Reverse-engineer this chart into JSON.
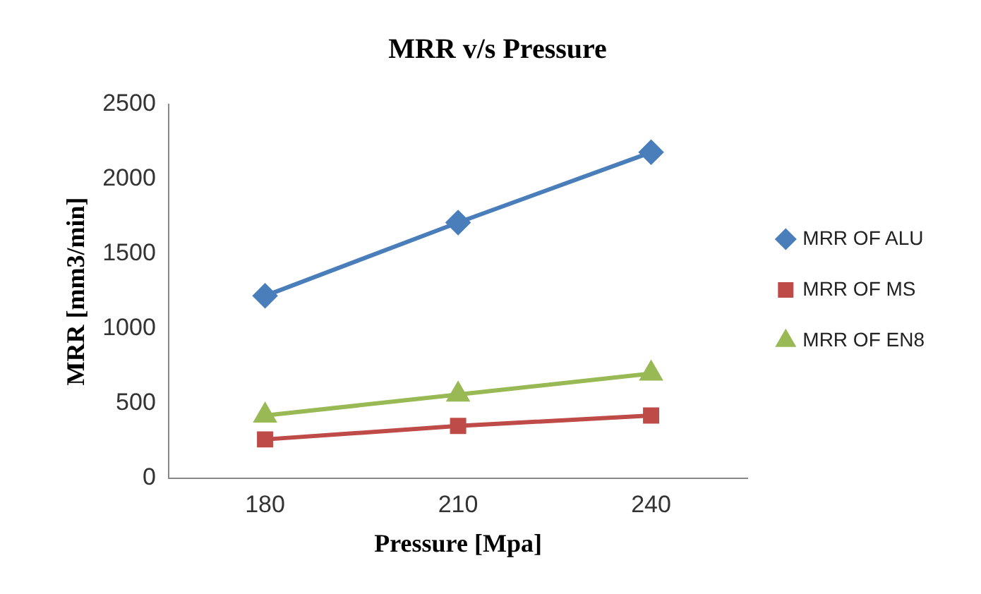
{
  "chart_data": {
    "type": "line",
    "title": "MRR v/s Pressure",
    "xlabel": "Pressure [Mpa]",
    "ylabel": "MRR [mm3/min]",
    "categories": [
      "180",
      "210",
      "240"
    ],
    "series": [
      {
        "name": "MRR OF ALU",
        "color": "#4a7ebb",
        "marker": "diamond",
        "values": [
          1220,
          1710,
          2180
        ]
      },
      {
        "name": "MRR OF MS",
        "color": "#be4b48",
        "marker": "square",
        "values": [
          260,
          350,
          420
        ]
      },
      {
        "name": "MRR OF EN8",
        "color": "#98b954",
        "marker": "triangle",
        "values": [
          420,
          560,
          700
        ]
      }
    ],
    "ylim": [
      0,
      2500
    ],
    "yticks": [
      0,
      500,
      1000,
      1500,
      2000,
      2500
    ],
    "grid": false,
    "legend": "right"
  }
}
